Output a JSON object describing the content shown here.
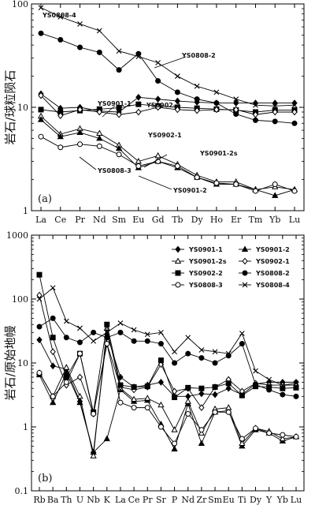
{
  "chart_data": [
    {
      "type": "line",
      "panel_label": "(a)",
      "ylabel": "岩石/球粒陨石",
      "yscale": "log",
      "ylim": [
        1,
        100
      ],
      "y_ticks": [
        "1",
        "10",
        "100"
      ],
      "categories": [
        "La",
        "Ce",
        "Pr",
        "Nd",
        "Sm",
        "Eu",
        "Gd",
        "Tb",
        "Dy",
        "Ho",
        "Er",
        "Tm",
        "Yb",
        "Lu"
      ],
      "series": [
        {
          "name": "YS0808-4",
          "marker": "x",
          "values": [
            92,
            75,
            64,
            55,
            35,
            31,
            27,
            20,
            16,
            14,
            12,
            10.5,
            10.3,
            10.5
          ]
        },
        {
          "name": "YS0808-2",
          "marker": "circle",
          "values": [
            52,
            45,
            38,
            34,
            23,
            33,
            18,
            14,
            12,
            11,
            8.6,
            7.5,
            7.3,
            7
          ]
        },
        {
          "name": "YS0901-1",
          "marker": "diamond",
          "values": [
            13.5,
            9.8,
            10,
            9.2,
            9,
            12.5,
            12,
            11.5,
            11.2,
            11,
            11,
            11,
            11,
            11
          ]
        },
        {
          "name": "YS0902-2",
          "marker": "square",
          "values": [
            9.5,
            9,
            9.3,
            9.6,
            9.9,
            10.7,
            10.3,
            10,
            9.8,
            9.6,
            9.4,
            9,
            9.4,
            9.4
          ]
        },
        {
          "name": "YS0902-1",
          "marker": "diamond-open",
          "values": [
            13,
            8.3,
            9.5,
            9,
            8.5,
            9,
            10,
            9.5,
            9.3,
            9.5,
            9.5,
            8.5,
            9,
            9
          ]
        },
        {
          "name": "YS0901-2s",
          "marker": "triangle-open",
          "values": [
            8.2,
            5.5,
            6.2,
            5.6,
            4.3,
            3,
            3.4,
            2.8,
            2.2,
            1.9,
            1.9,
            1.6,
            1.7,
            1.6
          ]
        },
        {
          "name": "YS0901-2",
          "marker": "triangle",
          "values": [
            7.6,
            5.2,
            5.7,
            5,
            4,
            2.6,
            3,
            2.6,
            2.1,
            1.8,
            1.8,
            1.6,
            1.4,
            1.6
          ]
        },
        {
          "name": "YS0808-3",
          "marker": "circle-open",
          "values": [
            5.2,
            4.1,
            4.4,
            4.2,
            3.5,
            2.7,
            3,
            2.7,
            2.1,
            1.85,
            1.8,
            1.55,
            1.8,
            1.55
          ]
        }
      ],
      "annotations": [
        {
          "text": "YS0808-4",
          "series": "YS0808-4"
        },
        {
          "text": "YS0808-2",
          "series": "YS0808-2"
        },
        {
          "text": "YS0901-1",
          "series": "YS0901-1"
        },
        {
          "text": "YS0902-2",
          "series": "YS0902-2"
        },
        {
          "text": "YS0902-1",
          "series": "YS0902-1"
        },
        {
          "text": "YS0901-2s",
          "series": "YS0901-2s"
        },
        {
          "text": "YS0808-3",
          "series": "YS0808-3"
        },
        {
          "text": "YS0901-2",
          "series": "YS0901-2"
        }
      ]
    },
    {
      "type": "line",
      "panel_label": "(b)",
      "ylabel": "岩石/原始地幔",
      "yscale": "log",
      "ylim": [
        0.1,
        1000
      ],
      "y_ticks": [
        "0.1",
        "1",
        "10",
        "100",
        "1000"
      ],
      "legend_position": "top-right",
      "categories": [
        "Rb",
        "Ba",
        "Th",
        "U",
        "Nb",
        "K",
        "La",
        "Ce",
        "Pr",
        "Sr",
        "P",
        "Nd",
        "Zr",
        "Sm",
        "Eu",
        "Ti",
        "Dy",
        "Y",
        "Yb",
        "Lu"
      ],
      "series": [
        {
          "name": "YS0901-1",
          "marker": "diamond",
          "values": [
            23,
            9,
            8,
            2.5,
            0.4,
            28,
            6,
            4.2,
            4.5,
            5,
            3,
            3,
            3.3,
            3.2,
            4,
            3.2,
            4.7,
            5,
            5,
            5
          ]
        },
        {
          "name": "YS0901-2",
          "marker": "triangle",
          "values": [
            6.5,
            2.4,
            7,
            2.4,
            0.4,
            0.65,
            3.8,
            2.5,
            2.6,
            1.1,
            0.45,
            2.3,
            0.55,
            1.7,
            1.8,
            0.5,
            0.9,
            0.8,
            0.6,
            0.7
          ]
        },
        {
          "name": "YS0901-2s",
          "marker": "triangle-open",
          "values": [
            7,
            3,
            8.5,
            3,
            0.35,
            35,
            4,
            2.7,
            2.8,
            2.2,
            0.9,
            2.5,
            0.8,
            1.9,
            2,
            0.55,
            0.95,
            0.85,
            0.65,
            0.7
          ]
        },
        {
          "name": "YS0902-1",
          "marker": "diamond-open",
          "values": [
            115,
            15,
            4.5,
            6,
            1.6,
            20,
            4.2,
            3.8,
            4.2,
            9.5,
            3.6,
            4,
            2,
            4.2,
            5.5,
            3.6,
            4.8,
            4.5,
            4.5,
            4.5
          ]
        },
        {
          "name": "YS0902-2",
          "marker": "square",
          "values": [
            240,
            25,
            6,
            14,
            1.7,
            40,
            4.5,
            4.2,
            4.3,
            11,
            2.9,
            4.1,
            4,
            4.2,
            4.8,
            3.1,
            4.3,
            4.2,
            4,
            4.1
          ]
        },
        {
          "name": "YS0808-2",
          "marker": "circle",
          "values": [
            37,
            50,
            25,
            21,
            30,
            25,
            30,
            22,
            22,
            20,
            10,
            14,
            12,
            10,
            13,
            20,
            4.6,
            3.8,
            3.2,
            3
          ]
        },
        {
          "name": "YS0808-3",
          "marker": "circle-open",
          "values": [
            7,
            3,
            5,
            14,
            1.6,
            20,
            2.4,
            2,
            2,
            1,
            0.55,
            1.6,
            0.9,
            1.7,
            1.7,
            0.65,
            0.95,
            0.8,
            0.75,
            0.7
          ]
        },
        {
          "name": "YS0808-4",
          "marker": "x",
          "values": [
            100,
            150,
            45,
            35,
            22,
            30,
            42,
            33,
            28,
            30,
            15,
            25,
            16,
            15,
            14,
            29,
            7.5,
            5.5,
            4.5,
            4.8
          ]
        }
      ]
    }
  ]
}
